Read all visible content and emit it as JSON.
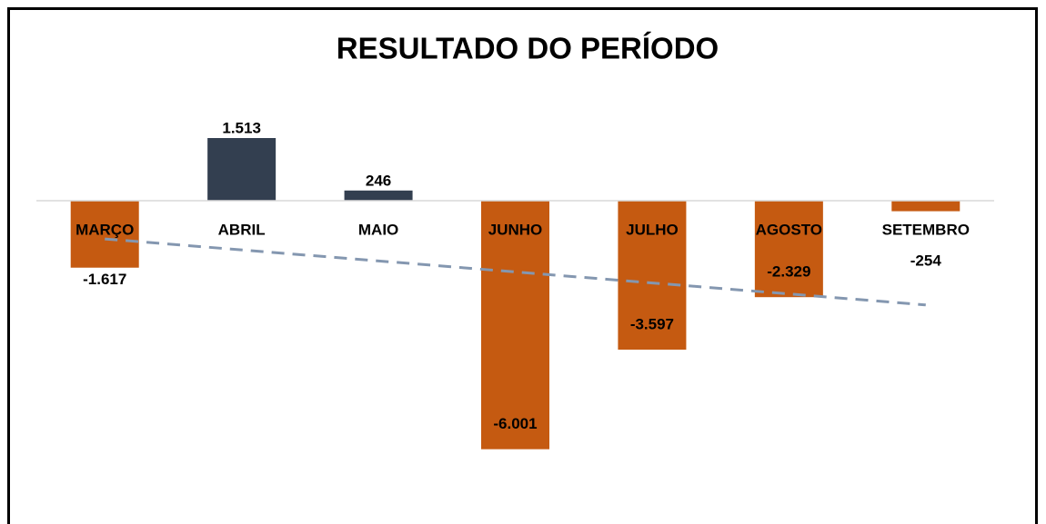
{
  "chart_data": {
    "type": "bar",
    "title": "RESULTADO DO PERÍODO",
    "categories": [
      "MARÇO",
      "ABRIL",
      "MAIO",
      "JUNHO",
      "JULHO",
      "AGOSTO",
      "SETEMBRO"
    ],
    "values": [
      -1617,
      1513,
      246,
      -6001,
      -3597,
      -2329,
      -254
    ],
    "value_labels": [
      "-1.617",
      "1.513",
      "246",
      "-6.001",
      "-3.597",
      "-2.329",
      "-254"
    ],
    "positive_color": "#333f50",
    "negative_color": "#c55a11",
    "trendline": {
      "type": "linear",
      "color": "#8497b0"
    },
    "ylim": [
      -7500,
      2500
    ]
  }
}
